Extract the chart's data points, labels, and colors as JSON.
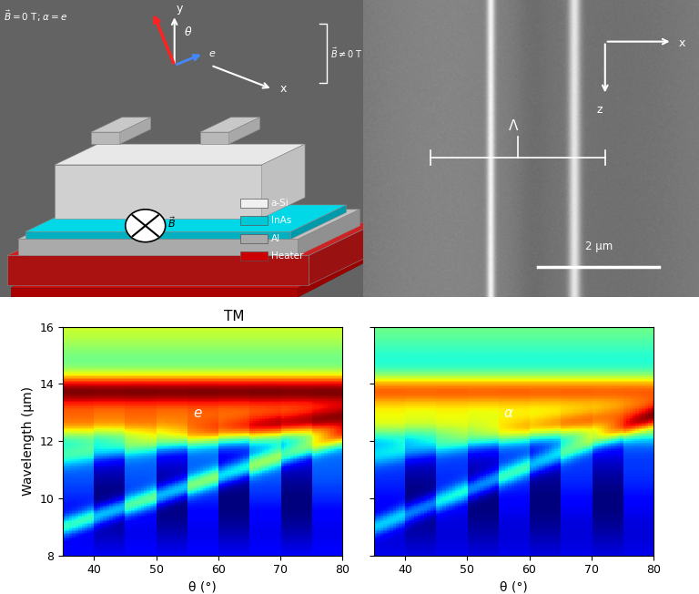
{
  "title": "TM",
  "xlabel": "θ (°)",
  "ylabel": "Wavelength (μm)",
  "xlim": [
    35,
    80
  ],
  "ylim": [
    8,
    16
  ],
  "xticks": [
    40,
    50,
    60,
    70,
    80
  ],
  "yticks": [
    8,
    10,
    12,
    14,
    16
  ],
  "label_left": "e",
  "label_right": "α",
  "colormap": "jet",
  "background_color": "#ffffff",
  "legend_items": [
    {
      "label": "a-Si",
      "color": "#f0f0f0"
    },
    {
      "label": "InAs",
      "color": "#00c8d4"
    },
    {
      "label": "Al",
      "color": "#a8a8a8"
    },
    {
      "label": "Heater",
      "color": "#cc0000"
    }
  ],
  "schematic_bg": "#636363",
  "sem_bg": "#808080",
  "heater_color": "#cc1111",
  "al_color": "#b0b0b0",
  "inas_color": "#00d0e0",
  "si_color": "#e8e8e8"
}
